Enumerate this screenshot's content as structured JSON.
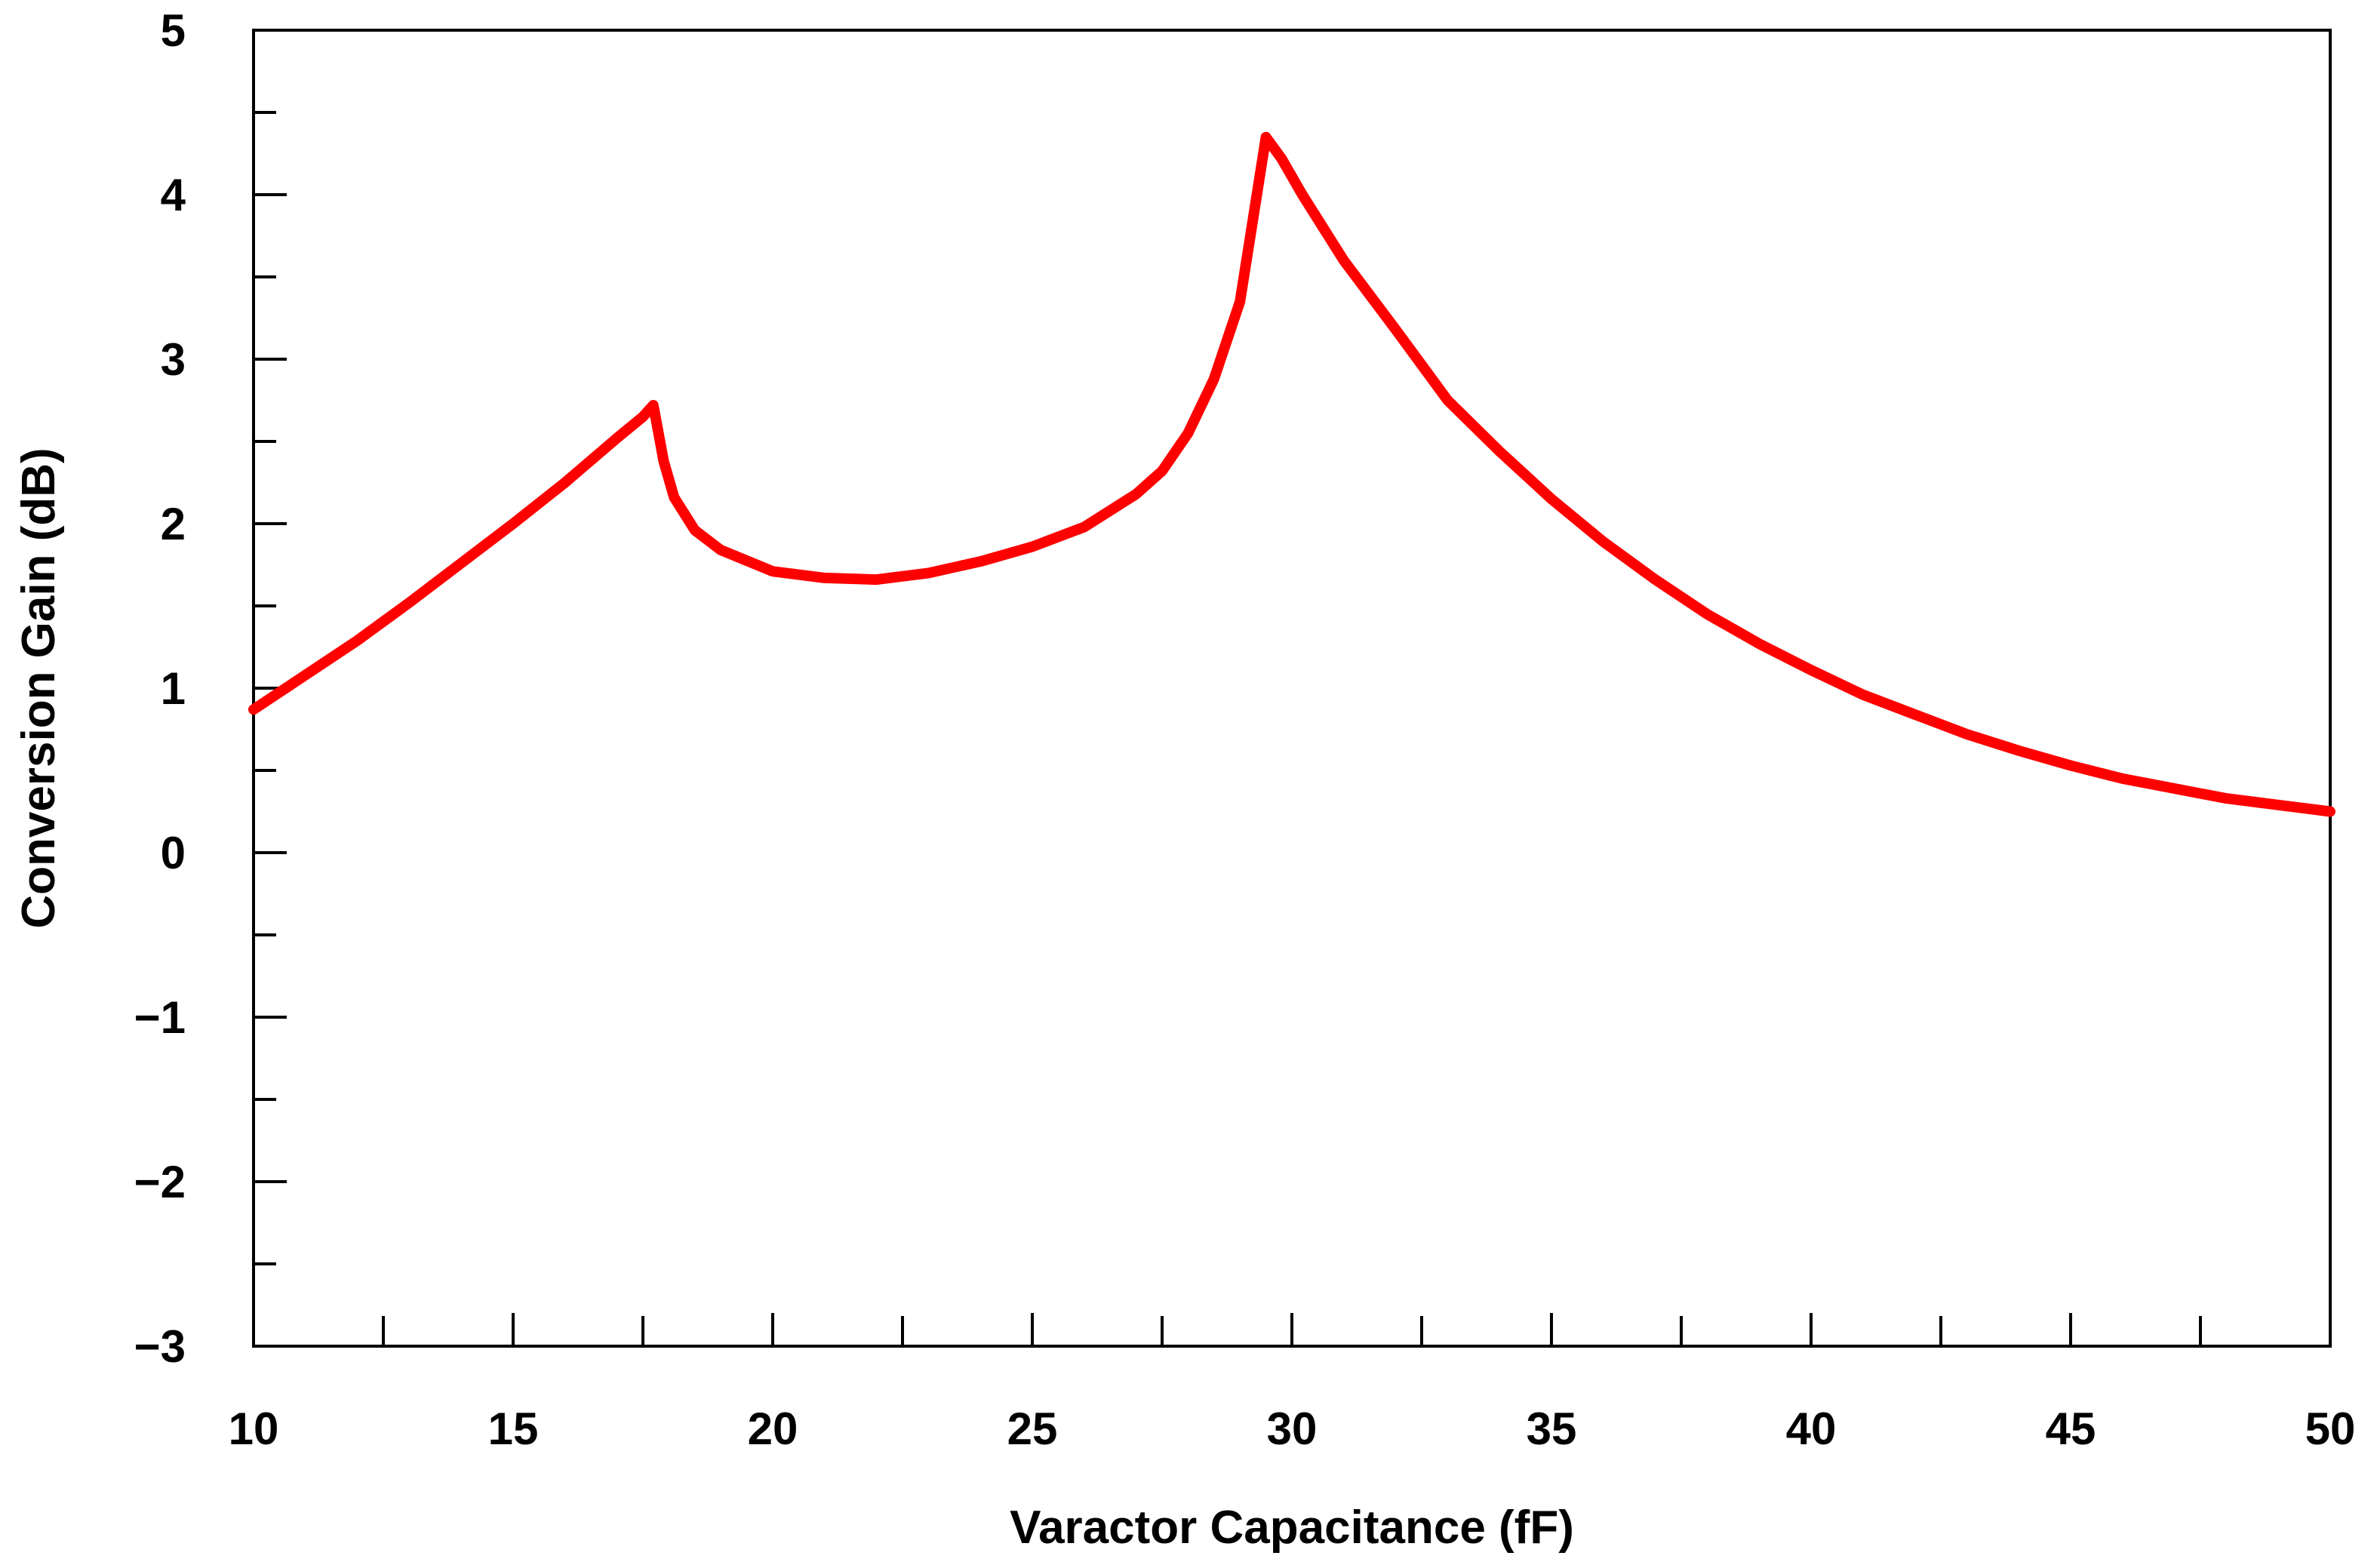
{
  "chart_data": {
    "type": "line",
    "title": "",
    "xlabel": "Varactor Capacitance (fF)",
    "ylabel": "Conversion Gain (dB)",
    "xlim": [
      10,
      50
    ],
    "ylim": [
      -3,
      5
    ],
    "x_ticks": [
      10,
      15,
      20,
      25,
      30,
      35,
      40,
      45,
      50
    ],
    "x_tick_labels": [
      "10",
      "15",
      "20",
      "25",
      "30",
      "35",
      "40",
      "45",
      "50"
    ],
    "x_minor_step": 2.5,
    "y_ticks": [
      -3,
      -2,
      -1,
      0,
      1,
      2,
      3,
      4,
      5
    ],
    "y_tick_labels": [
      "−3",
      "−2",
      "−1",
      "0",
      "1",
      "2",
      "3",
      "4",
      "5"
    ],
    "y_minor_step": 0.5,
    "grid": false,
    "legend": "none",
    "series": [
      {
        "color": "#ff0000",
        "x": [
          10,
          11,
          12,
          13,
          14,
          15,
          16,
          17,
          17.5,
          17.7,
          17.9,
          18.1,
          18.5,
          19,
          20,
          21,
          22,
          23,
          24,
          25,
          26,
          27,
          27.5,
          28,
          28.5,
          29,
          29.2,
          29.5,
          29.8,
          30.2,
          31,
          32,
          33,
          34,
          35,
          36,
          37,
          38,
          39,
          40,
          41,
          42,
          43,
          44,
          45,
          46,
          47,
          48,
          49,
          50
        ],
        "y": [
          0.87,
          1.08,
          1.29,
          1.52,
          1.76,
          2.0,
          2.25,
          2.52,
          2.65,
          2.72,
          2.38,
          2.16,
          1.96,
          1.84,
          1.71,
          1.67,
          1.66,
          1.7,
          1.77,
          1.86,
          1.98,
          2.18,
          2.32,
          2.55,
          2.88,
          3.35,
          3.75,
          4.35,
          4.22,
          4.0,
          3.6,
          3.18,
          2.75,
          2.44,
          2.15,
          1.89,
          1.66,
          1.45,
          1.27,
          1.11,
          0.96,
          0.84,
          0.72,
          0.62,
          0.53,
          0.45,
          0.39,
          0.33,
          0.29,
          0.25
        ]
      }
    ]
  }
}
